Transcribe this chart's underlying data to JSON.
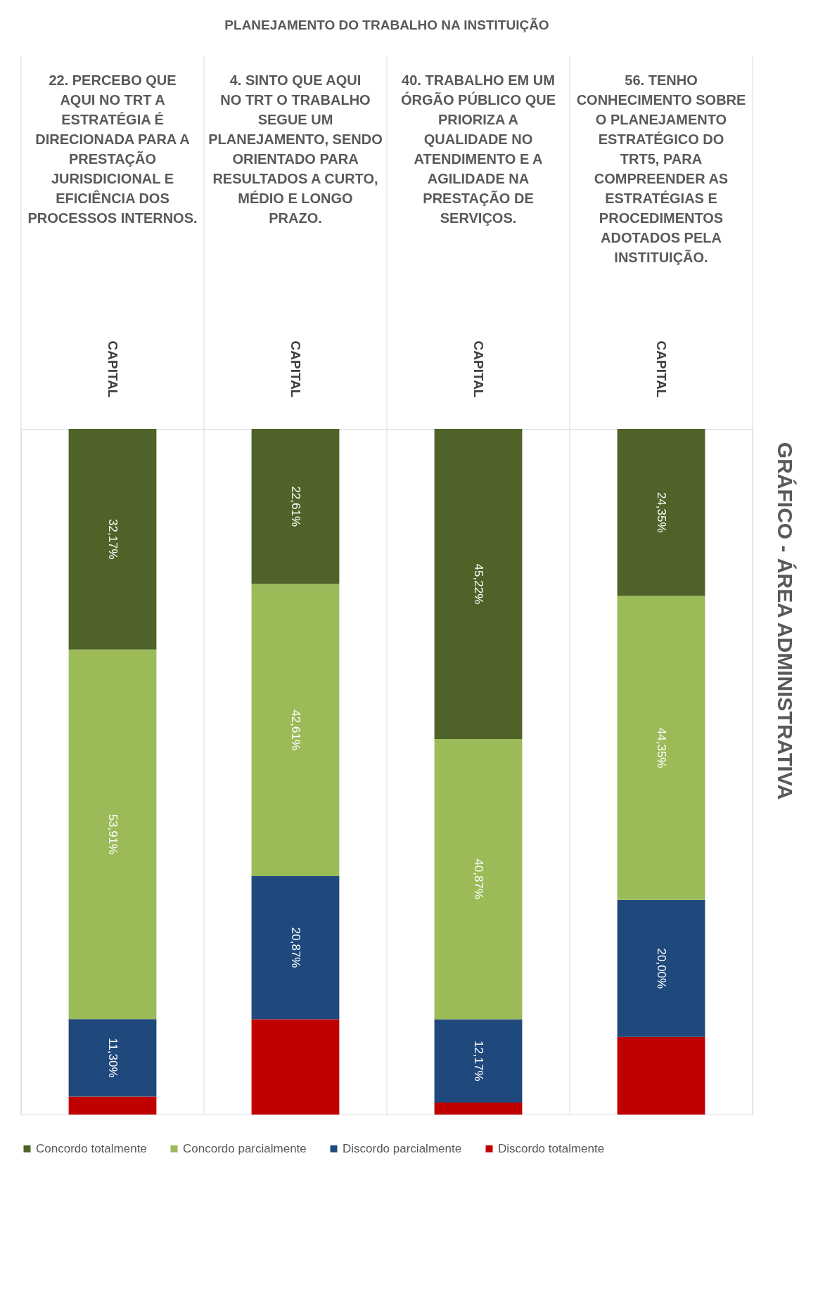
{
  "chart_data": {
    "type": "bar",
    "stacked": true,
    "title": "GRÁFICO - ÁREA ADMINISTRATIVA",
    "subtitle": "PLANEJAMENTO DO TRABALHO NA INSTITUIÇÃO",
    "categories": [
      "22. PERCEBO QUE AQUI NO TRT A ESTRATÉGIA É DIRECIONADA PARA A PRESTAÇÃO JURISDICIONAL E EFICIÊNCIA DOS PROCESSOS INTERNOS.",
      "4. SINTO QUE AQUI NO TRT O TRABALHO SEGUE UM PLANEJAMENTO, SENDO ORIENTADO PARA RESULTADOS A CURTO, MÉDIO E LONGO PRAZO.",
      "40. TRABALHO EM UM ÓRGÃO PÚBLICO QUE PRIORIZA A QUALIDADE NO ATENDIMENTO E A AGILIDADE NA PRESTAÇÃO DE SERVIÇOS.",
      "56. TENHO CONHECIMENTO SOBRE O PLANEJAMENTO ESTRATÉGICO DO TRT5, PARA COMPREENDER AS ESTRATÉGIAS E PROCEDIMENTOS ADOTADOS PELA INSTITUIÇÃO."
    ],
    "series": [
      {
        "name": "Discordo totalmente",
        "color": "#c00000",
        "values": [
          2.62,
          13.91,
          1.74,
          11.3
        ],
        "value_labels": [
          null,
          null,
          null,
          null
        ]
      },
      {
        "name": "Discordo parcialmente",
        "color": "#1f497d",
        "values": [
          11.3,
          20.87,
          12.17,
          20.0
        ],
        "value_labels": [
          "11,30%",
          "20,87%",
          "12,17%",
          "20,00%"
        ]
      },
      {
        "name": "Concordo parcialmente",
        "color": "#9bbb59",
        "values": [
          53.91,
          42.61,
          40.87,
          44.35
        ],
        "value_labels": [
          "53,91%",
          "42,61%",
          "40,87%",
          "44,35%"
        ]
      },
      {
        "name": "Concordo totalmente",
        "color": "#4f6228",
        "values": [
          32.17,
          22.61,
          45.22,
          24.35
        ],
        "value_labels": [
          "32,17%",
          "22,61%",
          "45,22%",
          "24,35%"
        ]
      }
    ],
    "annotations": [
      "CAPITAL",
      "CAPITAL",
      "CAPITAL",
      "CAPITAL"
    ],
    "legend": "bottom"
  }
}
